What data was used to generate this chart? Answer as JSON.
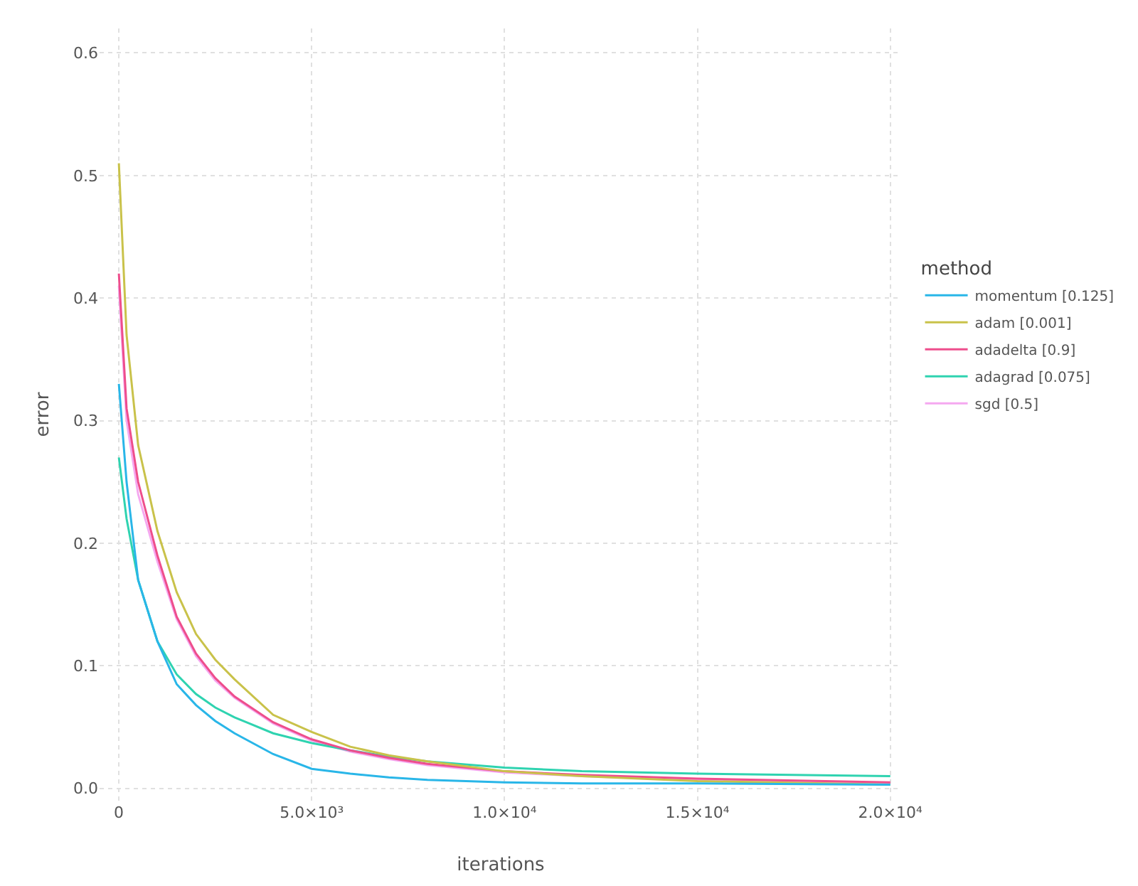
{
  "chart_data": {
    "type": "line",
    "xlabel": "iterations",
    "ylabel": "error",
    "legend_title": "method",
    "legend": "right",
    "grid": true,
    "marker": "none",
    "line_style": "solid",
    "x": [
      0,
      200,
      500,
      1000,
      1500,
      2000,
      2500,
      3000,
      4000,
      5000,
      6000,
      7000,
      8000,
      10000,
      12000,
      15000,
      20000
    ],
    "xlim": [
      -500,
      20300
    ],
    "ylim": [
      -0.01,
      0.62
    ],
    "xticks": [
      0,
      {
        "value": 5000,
        "label": "5.0×10³"
      },
      {
        "value": 10000,
        "label": "1.0×10⁴"
      },
      {
        "value": 15000,
        "label": "1.5×10⁴"
      },
      {
        "value": 20000,
        "label": "2.0×10⁴"
      }
    ],
    "yticks": [
      {
        "value": 0,
        "label": "0.0"
      },
      0.1,
      0.2,
      0.3,
      0.4,
      0.5,
      0.6
    ],
    "series": [
      {
        "name": "momentum [0.125]",
        "color": "#29b6e8",
        "values": [
          0.33,
          0.25,
          0.17,
          0.12,
          0.085,
          0.068,
          0.055,
          0.045,
          0.028,
          0.016,
          0.012,
          0.009,
          0.007,
          0.005,
          0.004,
          0.004,
          0.003
        ]
      },
      {
        "name": "adam [0.001]",
        "color": "#c9c24a",
        "values": [
          0.51,
          0.37,
          0.28,
          0.21,
          0.16,
          0.126,
          0.105,
          0.089,
          0.06,
          0.046,
          0.034,
          0.027,
          0.022,
          0.014,
          0.01,
          0.006,
          0.003
        ]
      },
      {
        "name": "adadelta [0.9]",
        "color": "#ee4e8c",
        "values": [
          0.42,
          0.31,
          0.25,
          0.19,
          0.14,
          0.11,
          0.09,
          0.075,
          0.054,
          0.04,
          0.031,
          0.025,
          0.02,
          0.014,
          0.011,
          0.008,
          0.005
        ]
      },
      {
        "name": "adagrad [0.075]",
        "color": "#2fd3b0",
        "values": [
          0.27,
          0.22,
          0.17,
          0.12,
          0.093,
          0.077,
          0.066,
          0.058,
          0.045,
          0.037,
          0.031,
          0.026,
          0.022,
          0.017,
          0.014,
          0.012,
          0.01
        ]
      },
      {
        "name": "sgd [0.5]",
        "color": "#f5a8f0",
        "values": [
          0.41,
          0.3,
          0.24,
          0.185,
          0.138,
          0.108,
          0.088,
          0.074,
          0.053,
          0.039,
          0.03,
          0.024,
          0.019,
          0.013,
          0.01,
          0.007,
          0.004
        ]
      }
    ]
  }
}
